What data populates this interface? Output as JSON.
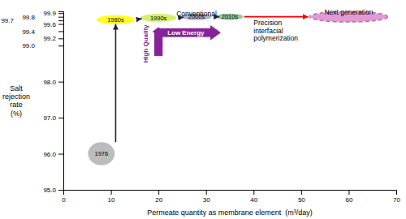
{
  "chart_data": {
    "type": "bubble",
    "xlabel": "Permeate quantity as membrane element  (m³/day)",
    "ylabel": "Salt\nrejection\nrate\n(%)",
    "xlim": [
      0,
      70
    ],
    "ylim": [
      95,
      99.95
    ],
    "xticks": [
      0,
      10,
      20,
      30,
      40,
      50,
      60,
      70
    ],
    "yticks": [
      {
        "value": 95,
        "label": "95.0"
      },
      {
        "value": 96,
        "label": "96.0"
      },
      {
        "value": 97,
        "label": "97.0"
      },
      {
        "value": 98,
        "label": "98.0"
      },
      {
        "value": 99,
        "label": "99.0"
      },
      99.2,
      99.4,
      99.6,
      99.7,
      99.8,
      99.9
    ],
    "grid": false,
    "bubbles": [
      {
        "label": "1976",
        "x": 8,
        "y": 96.0,
        "rx": 2.8,
        "ry": 0.32,
        "color": "#b0b0b0"
      },
      {
        "label": "1980s",
        "x": 11,
        "y": 99.72,
        "rx": 4.0,
        "ry": 0.13,
        "color": "#ffff00"
      },
      {
        "label": "1990s",
        "x": 20,
        "y": 99.77,
        "rx": 3.8,
        "ry": 0.11,
        "color": "#ccee55"
      },
      {
        "label": "2000s",
        "x": 28,
        "y": 99.8,
        "rx": 3.2,
        "ry": 0.09,
        "color": "#99aacc"
      },
      {
        "label": "2010s",
        "x": 35,
        "y": 99.8,
        "rx": 2.8,
        "ry": 0.09,
        "color": "#88bb88"
      },
      {
        "x": 60,
        "y": 99.8,
        "rx": 8.0,
        "ry": 0.14,
        "color": "#dd88cc"
      }
    ],
    "outline": {
      "x": 60,
      "y": 99.8,
      "rx": 8.2,
      "ry": 0.145,
      "color": "#bb66aa"
    },
    "arrows": [
      {
        "x1": 15.5,
        "y1": 99.725,
        "x2": 16.5,
        "y2": 99.745,
        "color": "#222244"
      },
      {
        "x1": 24.5,
        "y1": 99.775,
        "x2": 25.3,
        "y2": 99.788,
        "color": "#222244"
      },
      {
        "x1": 32.0,
        "y1": 99.8,
        "x2": 32.8,
        "y2": 99.8,
        "color": "#222244"
      },
      {
        "x1": 11,
        "y1": 96.32,
        "x2": 11,
        "y2": 99.6,
        "color": "#222244"
      },
      {
        "x1": 38.0,
        "y1": 99.8,
        "x2": 51.5,
        "y2": 99.8,
        "color": "red"
      }
    ],
    "low_energy": {
      "text": "Low Energy",
      "x0": 20.5,
      "y0": 99.36,
      "dx": 12.5,
      "width": 0.22,
      "head_width": 0.38,
      "head_length": 2.0,
      "color": "#882299",
      "text_color": "white"
    },
    "high_quality": {
      "text": "High Quality",
      "x0": 20.0,
      "y0": 98.72,
      "dy": 0.78,
      "width_x": 1.6,
      "head_height": 0.12,
      "color": "#882299"
    },
    "annotations": [
      {
        "text": "Conventional",
        "x": 28,
        "y": 99.875
      },
      {
        "text": "Next generation",
        "x": 60,
        "y": 99.925
      },
      {
        "text": "Precision\ninterfacial\npolymerization",
        "x": 40,
        "y": 99.735
      }
    ]
  }
}
